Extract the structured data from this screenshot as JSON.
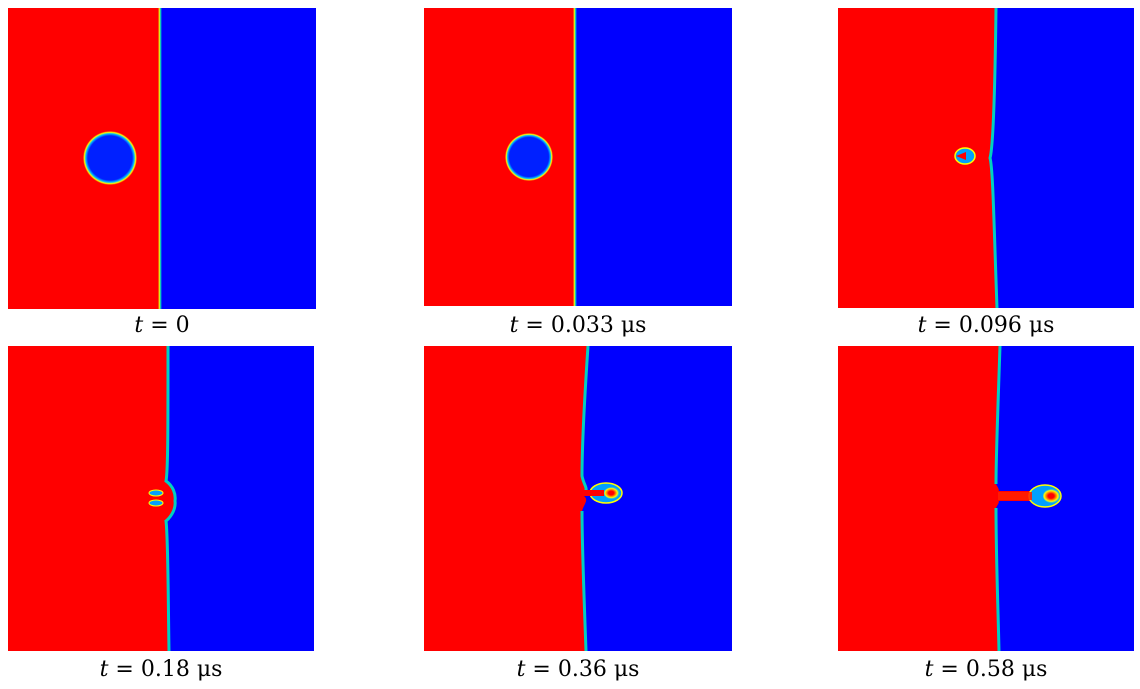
{
  "figure": {
    "colors": {
      "left_fluid": "#ff0000",
      "right_fluid": "#0000ff",
      "interface": "#00c0c0",
      "highlight": "#ffff00"
    },
    "panels": [
      {
        "id": "p1",
        "caption": {
          "var": "t",
          "eq": " = ",
          "value": "0",
          "unit": ""
        }
      },
      {
        "id": "p2",
        "caption": {
          "var": "t",
          "eq": " = ",
          "value": "0.033",
          "unit": " μs"
        }
      },
      {
        "id": "p3",
        "caption": {
          "var": "t",
          "eq": " = ",
          "value": "0.096",
          "unit": " μs"
        }
      },
      {
        "id": "p4",
        "caption": {
          "var": "t",
          "eq": " = ",
          "value": "0.18",
          "unit": " μs"
        }
      },
      {
        "id": "p5",
        "caption": {
          "var": "t",
          "eq": " = ",
          "value": "0.36",
          "unit": " μs"
        }
      },
      {
        "id": "p6",
        "caption": {
          "var": "t",
          "eq": " = ",
          "value": "0.58",
          "unit": " μs"
        }
      }
    ]
  }
}
